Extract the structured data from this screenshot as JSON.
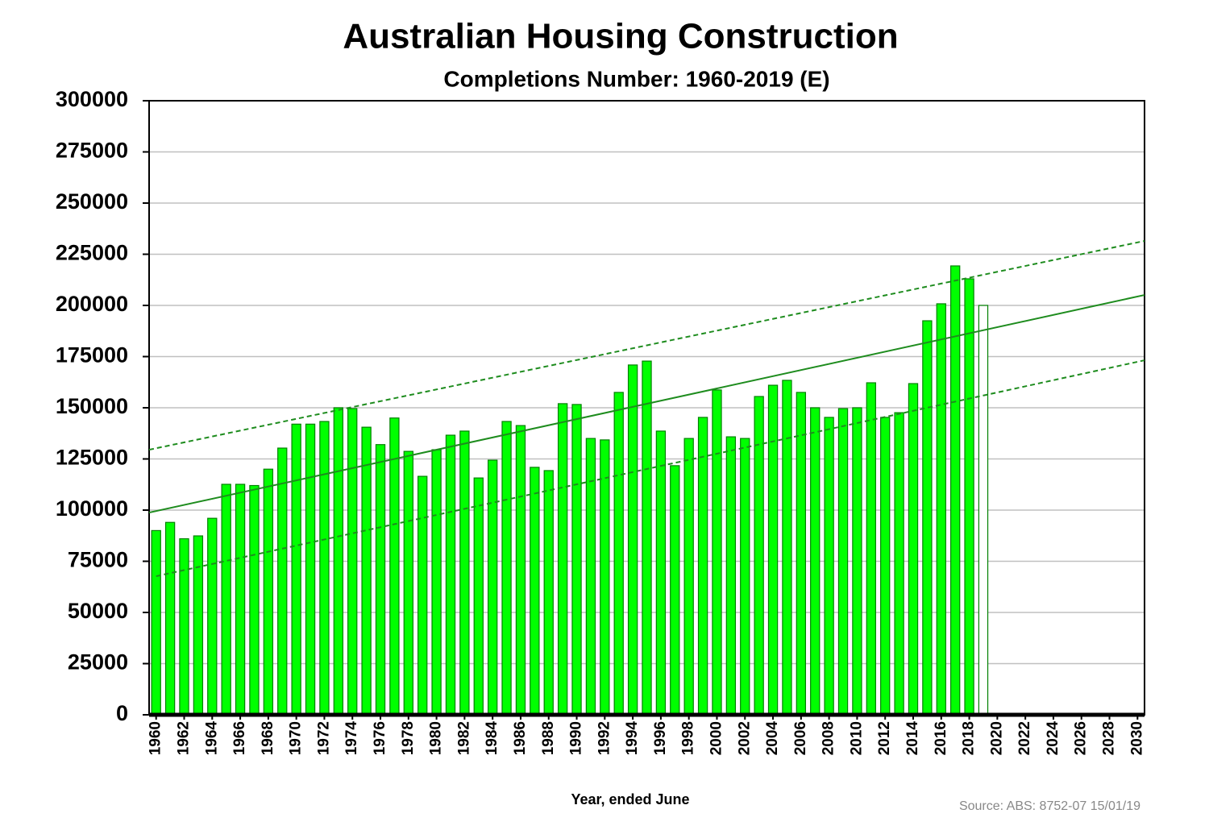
{
  "chart_data": {
    "type": "bar",
    "title": "Australian Housing Construction",
    "subtitle": "Completions Number: 1960-2019 (E)",
    "x_label": "Year, ended June",
    "source": "Source: ABS: 8752-07  15/01/19",
    "x": [
      1960,
      1961,
      1962,
      1963,
      1964,
      1965,
      1966,
      1967,
      1968,
      1969,
      1970,
      1971,
      1972,
      1973,
      1974,
      1975,
      1976,
      1977,
      1978,
      1979,
      1980,
      1981,
      1982,
      1983,
      1984,
      1985,
      1986,
      1987,
      1988,
      1989,
      1990,
      1991,
      1992,
      1993,
      1994,
      1995,
      1996,
      1997,
      1998,
      1999,
      2000,
      2001,
      2002,
      2003,
      2004,
      2005,
      2006,
      2007,
      2008,
      2009,
      2010,
      2011,
      2012,
      2013,
      2014,
      2015,
      2016,
      2017,
      2018,
      2019
    ],
    "values": [
      90000,
      94000,
      86000,
      87400,
      96000,
      112600,
      112600,
      112000,
      120000,
      130300,
      142000,
      142000,
      143300,
      150000,
      149600,
      140500,
      132000,
      145000,
      128700,
      116500,
      129500,
      136600,
      138600,
      115700,
      124400,
      143300,
      141300,
      120900,
      119300,
      152000,
      151600,
      135000,
      134300,
      157500,
      170900,
      172800,
      138600,
      121700,
      135000,
      145300,
      158700,
      135800,
      135000,
      155500,
      161000,
      163400,
      157500,
      150000,
      145300,
      149600,
      150000,
      162200,
      145300,
      147600,
      161800,
      192500,
      200800,
      219300,
      213000,
      200000
    ],
    "estimated_x": [
      2019
    ],
    "color": "#00ff00",
    "stroke": "#008000",
    "estimate_color": "#ffffff",
    "trend_color": "#1e8c1e",
    "trend_lines": [
      {
        "dashed": false,
        "x": [
          1959.5,
          2030.5
        ],
        "values": [
          98800,
          205100
        ]
      },
      {
        "dashed": true,
        "x": [
          1959.5,
          2030.5
        ],
        "values": [
          129500,
          231500
        ]
      },
      {
        "dashed": true,
        "x": [
          1960,
          2030.5
        ],
        "values": [
          67700,
          173200
        ]
      }
    ],
    "xlim": [
      1959.5,
      2030.5
    ],
    "xticks": [
      1960,
      1962,
      1964,
      1966,
      1968,
      1970,
      1972,
      1974,
      1976,
      1978,
      1980,
      1982,
      1984,
      1986,
      1988,
      1990,
      1992,
      1994,
      1996,
      1998,
      2000,
      2002,
      2004,
      2006,
      2008,
      2010,
      2012,
      2014,
      2016,
      2018,
      2020,
      2022,
      2024,
      2026,
      2028,
      2030
    ],
    "ylim": [
      0,
      300000
    ],
    "yticks": [
      0,
      25000,
      50000,
      75000,
      100000,
      125000,
      150000,
      175000,
      200000,
      225000,
      250000,
      275000,
      300000
    ],
    "grid": true
  }
}
